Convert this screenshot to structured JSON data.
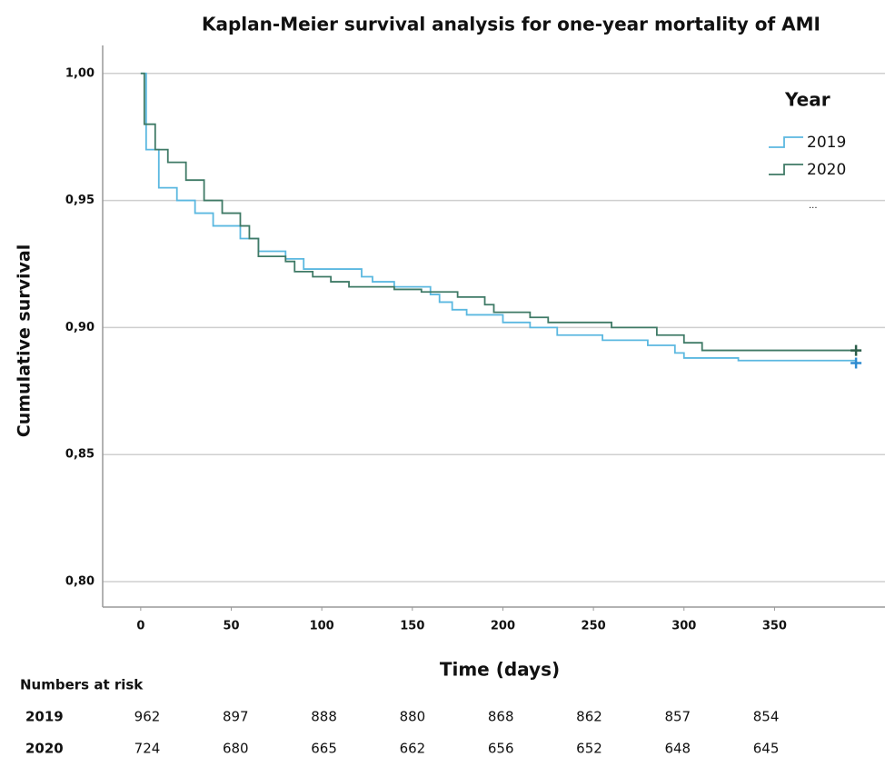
{
  "chart_data": {
    "type": "step",
    "title": "Kaplan-Meier survival analysis for one-year mortality of AMI",
    "x_label": "Time (days)",
    "y_label": "Cumulative survival",
    "xlim": [
      -21,
      411
    ],
    "ylim": [
      0.79,
      1.011
    ],
    "xticks": [
      0,
      50,
      100,
      150,
      200,
      250,
      300,
      350
    ],
    "yticks": [
      {
        "value": 0.8,
        "label": "0,80"
      },
      {
        "value": 0.85,
        "label": "0,85"
      },
      {
        "value": 0.9,
        "label": "0,90"
      },
      {
        "value": 0.95,
        "label": "0,95"
      },
      {
        "value": 1.0,
        "label": "1,00"
      }
    ],
    "grid": true,
    "legend_title": "Year",
    "legend_note": "...",
    "series": [
      {
        "name": "2019",
        "color": "#5bb8e0",
        "censor_color": "#2e8bd0",
        "x": [
          0,
          3,
          10,
          20,
          30,
          40,
          55,
          65,
          80,
          90,
          122,
          128,
          140,
          160,
          165,
          172,
          180,
          200,
          215,
          230,
          255,
          280,
          295,
          300,
          330,
          395
        ],
        "values": [
          1.0,
          0.97,
          0.955,
          0.95,
          0.945,
          0.94,
          0.935,
          0.93,
          0.927,
          0.923,
          0.92,
          0.918,
          0.916,
          0.913,
          0.91,
          0.907,
          0.905,
          0.902,
          0.9,
          0.897,
          0.895,
          0.893,
          0.89,
          0.888,
          0.887,
          0.886
        ]
      },
      {
        "name": "2020",
        "color": "#3f7a66",
        "censor_color": "#2c5e4a",
        "x": [
          0,
          2,
          8,
          15,
          25,
          35,
          45,
          55,
          60,
          65,
          80,
          85,
          95,
          105,
          115,
          140,
          155,
          175,
          190,
          195,
          215,
          225,
          260,
          285,
          300,
          310,
          395
        ],
        "values": [
          1.0,
          0.98,
          0.97,
          0.965,
          0.958,
          0.95,
          0.945,
          0.94,
          0.935,
          0.928,
          0.926,
          0.922,
          0.92,
          0.918,
          0.916,
          0.915,
          0.914,
          0.912,
          0.909,
          0.906,
          0.904,
          0.902,
          0.9,
          0.897,
          0.894,
          0.891,
          0.891
        ]
      }
    ],
    "risk_table": {
      "title": "Numbers at risk",
      "rows": [
        {
          "name": "2019",
          "values": [
            962,
            897,
            888,
            880,
            868,
            862,
            857,
            854
          ]
        },
        {
          "name": "2020",
          "values": [
            724,
            680,
            665,
            662,
            656,
            652,
            648,
            645
          ]
        }
      ]
    }
  }
}
